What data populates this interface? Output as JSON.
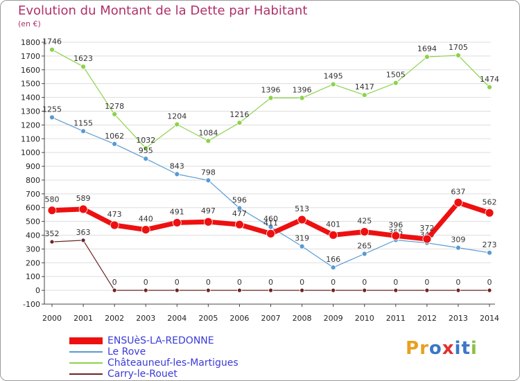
{
  "title": "Evolution du Montant de la Dette par Habitant",
  "subtitle": "(en €)",
  "logo": {
    "text": "Proxiti",
    "letters": [
      "P",
      "r",
      "o",
      "x",
      "i",
      "t",
      "i"
    ],
    "colors": [
      "#e8a020",
      "#e8a020",
      "#3a78c8",
      "#e03030",
      "#3a78c8",
      "#3a78c8",
      "#8cc04a"
    ]
  },
  "chart_data": {
    "type": "line",
    "x": [
      "2000",
      "2001",
      "2002",
      "2003",
      "2004",
      "2005",
      "2006",
      "2007",
      "2008",
      "2009",
      "2010",
      "2011",
      "2012",
      "2013",
      "2014"
    ],
    "ylim": [
      -100,
      1800
    ],
    "yticks": [
      -100,
      0,
      100,
      200,
      300,
      400,
      500,
      600,
      700,
      800,
      900,
      1000,
      1100,
      1200,
      1300,
      1400,
      1500,
      1600,
      1700,
      1800
    ],
    "grid": true,
    "legend_placement": "bottom-left",
    "series": [
      {
        "name": "Châteauneuf-les-Martigues",
        "color": "#8cd24a",
        "stroke_width": 1.2,
        "marker_r": 3.5,
        "values": [
          1746,
          1623,
          1278,
          1032,
          1204,
          1084,
          1216,
          1396,
          1396,
          1495,
          1417,
          1505,
          1694,
          1705,
          1474
        ],
        "labels": [
          "1746",
          "1623",
          "1278",
          "1032",
          "1204",
          "1084",
          "1216",
          "1396",
          "1396",
          "1495",
          "1417",
          "1505",
          "1694",
          "1705",
          "1474"
        ],
        "label_pos": "above"
      },
      {
        "name": "Le Rove",
        "color": "#5a9ad2",
        "stroke_width": 1.2,
        "marker_r": 3.5,
        "values": [
          1255,
          1155,
          1062,
          955,
          843,
          798,
          596,
          460,
          319,
          166,
          265,
          365,
          344,
          309,
          273
        ],
        "labels": [
          "1255",
          "1155",
          "1062",
          "955",
          "843",
          "798",
          "596",
          "460",
          "319",
          "166",
          "265",
          "365",
          "344",
          "309",
          "273"
        ],
        "label_pos": "above"
      },
      {
        "name": "Carry-le-Rouet",
        "color": "#6b2424",
        "stroke_width": 1.2,
        "marker_r": 3,
        "values": [
          352,
          363,
          0,
          0,
          0,
          0,
          0,
          0,
          0,
          0,
          0,
          0,
          0,
          0,
          0
        ],
        "labels": [
          "352",
          "363",
          "0",
          "0",
          "0",
          "0",
          "0",
          "0",
          "0",
          "0",
          "0",
          "0",
          "0",
          "0",
          "0"
        ],
        "label_pos": "above"
      },
      {
        "name": "ENSUèS-LA-REDONNE",
        "color": "#ee1010",
        "stroke_width": 7,
        "marker_r": 6,
        "values": [
          580,
          589,
          473,
          440,
          491,
          497,
          477,
          411,
          513,
          401,
          425,
          396,
          372,
          637,
          562
        ],
        "labels": [
          "580",
          "589",
          "473",
          "440",
          "491",
          "497",
          "477",
          "411",
          "513",
          "401",
          "425",
          "396",
          "372",
          "637",
          "562"
        ],
        "label_pos": "above"
      }
    ],
    "legend": [
      {
        "name": "ENSUèS-LA-REDONNE",
        "color": "#ee1010",
        "text_color": "#3a3ad8",
        "thick": 10
      },
      {
        "name": "Le Rove",
        "color": "#5a9ad2",
        "text_color": "#3a3ad8",
        "thick": 2
      },
      {
        "name": "Châteauneuf-les-Martigues",
        "color": "#8cd24a",
        "text_color": "#3a3ad8",
        "thick": 2
      },
      {
        "name": "Carry-le-Rouet",
        "color": "#6b2424",
        "text_color": "#3a3ad8",
        "thick": 2
      }
    ]
  }
}
